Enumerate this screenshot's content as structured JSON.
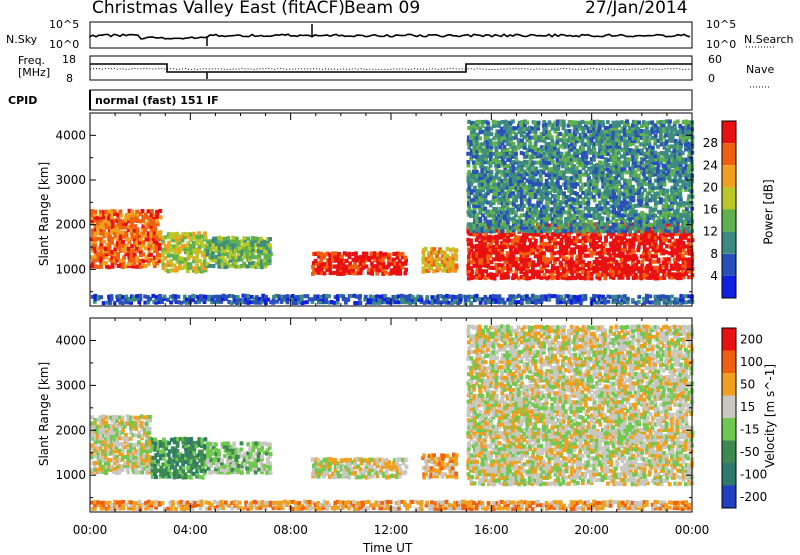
{
  "header": {
    "title": "Christmas Valley East (fitACF)",
    "beam": "Beam 09",
    "date": "27/Jan/2014"
  },
  "noise_panel": {
    "left_label": "N.Sky",
    "right_label": "N.Search",
    "left_ticks": [
      "10^5",
      "10^0"
    ],
    "right_ticks": [
      "10^5",
      "10^0"
    ]
  },
  "freq_panel": {
    "left_label_line1": "Freq.",
    "left_label_line2": "[MHz]",
    "right_label": "Nave",
    "left_ticks": [
      "18",
      "8"
    ],
    "right_ticks": [
      "60",
      "0"
    ]
  },
  "cpid": {
    "label": "CPID",
    "value": "normal (fast) 151 IF"
  },
  "chart_data": [
    {
      "type": "heatmap",
      "title": "",
      "xlabel": "Time UT",
      "ylabel": "Slant Range [km]",
      "x_ticks": [
        "00:00",
        "04:00",
        "08:00",
        "12:00",
        "16:00",
        "20:00",
        "00:00"
      ],
      "xlim_hours": [
        0,
        24
      ],
      "y_ticks": [
        1000,
        2000,
        3000,
        4000
      ],
      "ylim": [
        180,
        4500
      ],
      "colorbar": {
        "label": "Power [dB]",
        "ticks": [
          "4",
          "8",
          "12",
          "16",
          "20",
          "24",
          "28"
        ],
        "colors": [
          "#1020e0",
          "#2850b8",
          "#3c8a82",
          "#60b050",
          "#b8c828",
          "#f0a020",
          "#f06010",
          "#e81010"
        ]
      },
      "regions": [
        {
          "t0": 0.0,
          "t1": 2.8,
          "r0": 1000,
          "r1": 2300,
          "level": 6
        },
        {
          "t0": 2.8,
          "t1": 4.6,
          "r0": 900,
          "r1": 1800,
          "level": 4
        },
        {
          "t0": 4.6,
          "t1": 7.2,
          "r0": 1000,
          "r1": 1700,
          "level": 3
        },
        {
          "t0": 8.8,
          "t1": 12.6,
          "r0": 850,
          "r1": 1350,
          "level": 7
        },
        {
          "t0": 13.2,
          "t1": 14.6,
          "r0": 900,
          "r1": 1450,
          "level": 5
        },
        {
          "t0": 15.0,
          "t1": 24.0,
          "r0": 750,
          "r1": 2000,
          "level": 7
        },
        {
          "t0": 15.0,
          "t1": 24.0,
          "r0": 1800,
          "r1": 4300,
          "level": 2
        },
        {
          "t0": 0.0,
          "t1": 24.0,
          "r0": 200,
          "r1": 400,
          "level": 1
        }
      ]
    },
    {
      "type": "heatmap",
      "title": "",
      "xlabel": "Time UT",
      "ylabel": "Slant Range [km]",
      "x_ticks": [
        "00:00",
        "04:00",
        "08:00",
        "12:00",
        "16:00",
        "20:00",
        "00:00"
      ],
      "xlim_hours": [
        0,
        24
      ],
      "y_ticks": [
        1000,
        2000,
        3000,
        4000
      ],
      "ylim": [
        180,
        4500
      ],
      "colorbar": {
        "label": "Velocity [m s^-1]",
        "ticks": [
          "200",
          "100",
          "50",
          "15",
          "-15",
          "-50",
          "-100",
          "-200"
        ],
        "colors": [
          "#2040c0",
          "#2e7a6a",
          "#3c8a50",
          "#70c850",
          "#c8c8c0",
          "#f0a020",
          "#f06010",
          "#e81010"
        ]
      },
      "regions": [
        {
          "t0": 0.0,
          "t1": 2.4,
          "r0": 1000,
          "r1": 2300,
          "level": 4
        },
        {
          "t0": 2.4,
          "t1": 4.6,
          "r0": 900,
          "r1": 1800,
          "level": 2
        },
        {
          "t0": 4.6,
          "t1": 7.2,
          "r0": 1000,
          "r1": 1700,
          "level": 3
        },
        {
          "t0": 8.8,
          "t1": 12.6,
          "r0": 900,
          "r1": 1350,
          "level": 4
        },
        {
          "t0": 13.2,
          "t1": 14.6,
          "r0": 900,
          "r1": 1450,
          "level": 5
        },
        {
          "t0": 15.0,
          "t1": 24.0,
          "r0": 750,
          "r1": 2000,
          "level": 4
        },
        {
          "t0": 15.0,
          "t1": 24.0,
          "r0": 1800,
          "r1": 4300,
          "level": 4
        },
        {
          "t0": 0.0,
          "t1": 24.0,
          "r0": 200,
          "r1": 400,
          "level": 5
        }
      ]
    }
  ]
}
